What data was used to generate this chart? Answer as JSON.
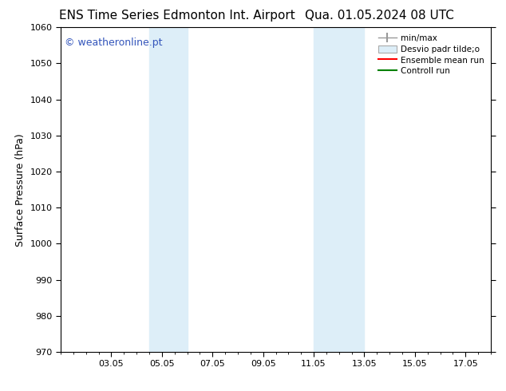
{
  "title_left": "ENS Time Series Edmonton Int. Airport",
  "title_right": "Qua. 01.05.2024 08 UTC",
  "ylabel": "Surface Pressure (hPa)",
  "ylim": [
    970,
    1060
  ],
  "yticks": [
    970,
    980,
    990,
    1000,
    1010,
    1020,
    1030,
    1040,
    1050,
    1060
  ],
  "xlim": [
    1.0,
    18.0
  ],
  "xtick_labels": [
    "03.05",
    "05.05",
    "07.05",
    "09.05",
    "11.05",
    "13.05",
    "15.05",
    "17.05"
  ],
  "xtick_positions": [
    3,
    5,
    7,
    9,
    11,
    13,
    15,
    17
  ],
  "shaded_regions": [
    {
      "x_start": 4.5,
      "x_end": 6.0,
      "color": "#ddeef8"
    },
    {
      "x_start": 11.0,
      "x_end": 13.0,
      "color": "#ddeef8"
    }
  ],
  "watermark": "© weatheronline.pt",
  "watermark_color": "#3355bb",
  "legend_labels": [
    "min/max",
    "Desvio padr tilde;o",
    "Ensemble mean run",
    "Controll run"
  ],
  "background_color": "#ffffff",
  "title_fontsize": 11,
  "axis_label_fontsize": 9,
  "tick_fontsize": 8,
  "watermark_fontsize": 9
}
